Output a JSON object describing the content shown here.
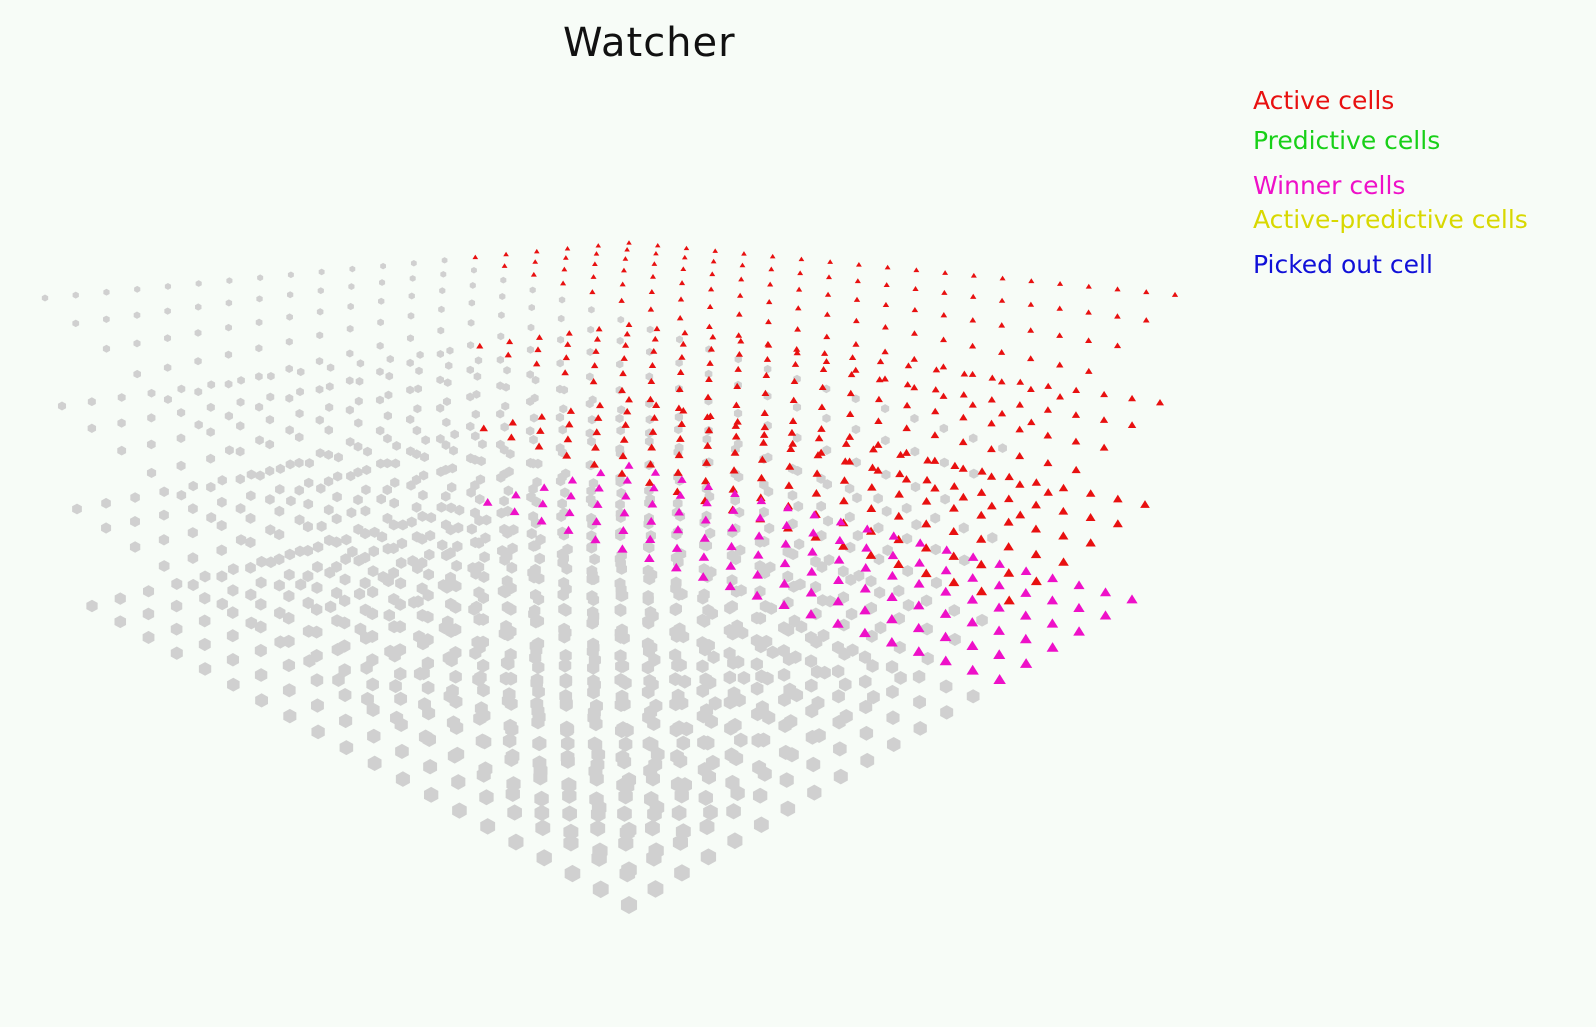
{
  "window": {
    "title": "Watcher"
  },
  "legend": {
    "items": [
      {
        "label": "Active cells",
        "color": "#e81010"
      },
      {
        "label": "Predictive cells",
        "color": "#18d018"
      },
      {
        "label": "Winner cells",
        "color": "#ee10c8"
      },
      {
        "label": "Active-predictive cells",
        "color": "#d8d800"
      },
      {
        "label": "Picked out cell",
        "color": "#1010d8"
      }
    ]
  },
  "scene": {
    "cell_color": "#d0d0d0",
    "grid_size": 20,
    "layers": 4,
    "highlighted_layers": [
      {
        "layer": 0,
        "state": "active",
        "color": "#e81010"
      },
      {
        "layer": 1,
        "state": "active",
        "color": "#e81010"
      },
      {
        "layer": 2,
        "state": "active",
        "color": "#e81010"
      },
      {
        "layer": 3,
        "state": "winner",
        "color": "#ee10c8"
      }
    ]
  }
}
